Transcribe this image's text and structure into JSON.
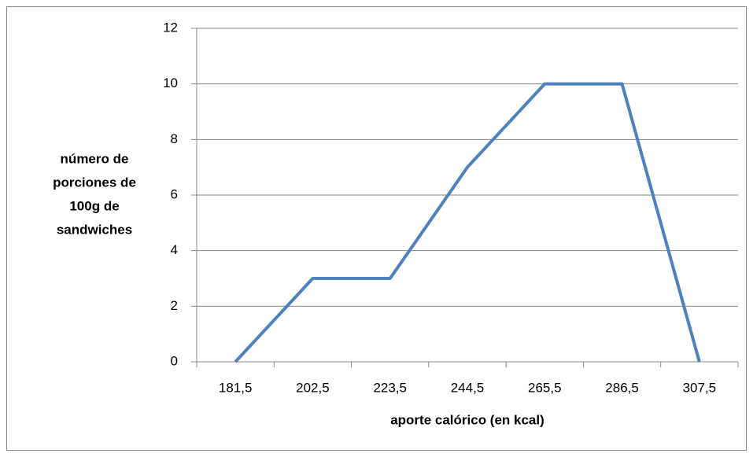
{
  "chart_data": {
    "type": "line",
    "y_label": [
      "número de",
      "porciones de",
      "100g de",
      "sandwiches"
    ],
    "x_label": "aporte calórico (en kcal)",
    "categories": [
      "181,5",
      "202,5",
      "223,5",
      "244,5",
      "265,5",
      "286,5",
      "307,5"
    ],
    "values": [
      0,
      3,
      3,
      7,
      10,
      10,
      0
    ],
    "color": "#4f81bd",
    "ylim": [
      0,
      12
    ],
    "yticks": [
      0,
      2,
      4,
      6,
      8,
      10,
      12
    ],
    "grid": true
  }
}
